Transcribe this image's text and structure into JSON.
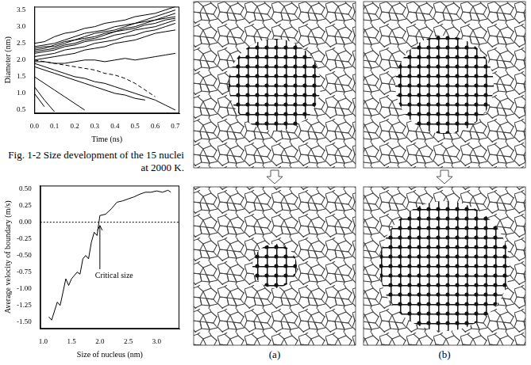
{
  "figure": {
    "caption": "Fig. 1-2 Size development of the 15 nuclei at 2000 K.",
    "panels": [
      {
        "label": "(a)"
      },
      {
        "label": "(b)"
      }
    ]
  },
  "chart_data": [
    {
      "type": "line",
      "x_label": "Time (ns)",
      "y_label": "Diameter (nm)",
      "grid": false,
      "x": [
        0,
        0.05,
        0.1,
        0.15,
        0.2,
        0.25,
        0.3,
        0.35,
        0.4,
        0.45,
        0.5,
        0.55,
        0.6,
        0.65,
        0.7
      ],
      "xlim": [
        0,
        0.72
      ],
      "xticks": [
        {
          "value": 0,
          "label": "0.0"
        },
        0.1,
        0.2,
        0.3,
        0.4,
        0.5,
        0.6,
        0.7
      ],
      "ylim": [
        0.4,
        3.6
      ],
      "yticks": [
        0.5,
        {
          "value": 1,
          "label": "1.0"
        },
        1.5,
        {
          "value": 2,
          "label": "2.0"
        },
        2.5,
        {
          "value": 3,
          "label": "3.0"
        },
        3.5
      ],
      "series": [
        {
          "color": "#000000",
          "values": [
            2.5,
            2.55,
            2.7,
            2.8,
            2.85,
            2.95,
            3.0,
            3.1,
            3.15,
            3.2,
            3.3,
            3.35,
            3.4,
            3.5,
            3.6
          ]
        },
        {
          "color": "#000000",
          "values": [
            2.4,
            2.45,
            2.5,
            2.6,
            2.7,
            2.8,
            2.85,
            2.9,
            3.0,
            3.05,
            3.1,
            3.2,
            3.3,
            3.4,
            3.5
          ]
        },
        {
          "color": "#000000",
          "values": [
            2.3,
            2.35,
            2.45,
            2.55,
            2.6,
            2.7,
            2.8,
            2.85,
            2.9,
            3.0,
            3.1,
            3.15,
            3.2,
            3.3,
            3.4
          ]
        },
        {
          "color": "#000000",
          "values": [
            2.35,
            2.4,
            2.4,
            2.5,
            2.6,
            2.65,
            2.7,
            2.8,
            2.85,
            2.95,
            3.0,
            3.1,
            3.2,
            3.25,
            3.3
          ]
        },
        {
          "color": "#000000",
          "values": [
            2.25,
            2.3,
            2.35,
            2.45,
            2.5,
            2.6,
            2.65,
            2.75,
            2.85,
            2.9,
            2.95,
            3.05,
            3.1,
            3.2,
            3.25
          ]
        },
        {
          "color": "#000000",
          "values": [
            2.2,
            2.25,
            2.3,
            2.4,
            2.45,
            2.55,
            2.6,
            2.65,
            2.75,
            2.8,
            2.9,
            2.95,
            3.0,
            3.1,
            3.2
          ]
        },
        {
          "color": "#000000",
          "values": [
            2.1,
            2.15,
            2.2,
            2.3,
            2.35,
            2.4,
            2.5,
            2.55,
            2.6,
            2.7,
            2.75,
            2.85,
            2.9,
            3.0,
            3.1
          ]
        },
        {
          "color": "#000000",
          "values": [
            2.0,
            2.05,
            2.1,
            2.15,
            2.2,
            2.3,
            2.35,
            2.4,
            2.5,
            2.55,
            2.6,
            2.7,
            2.8,
            2.85,
            2.9
          ]
        },
        {
          "color": "#000000",
          "values": [
            1.95,
            1.95,
            1.9,
            1.9,
            1.95,
            2.0,
            2.0,
            1.95,
            2.0,
            2.05,
            2.0,
            2.05,
            2.1,
            2.15,
            2.2
          ]
        },
        {
          "color": "#000000",
          "values": [
            1.9,
            1.8,
            1.7,
            1.6,
            1.5,
            1.45,
            1.35,
            1.3,
            1.2,
            1.1,
            1.0,
            0.9,
            0.8,
            0.65,
            0.5
          ]
        },
        {
          "color": "#000000",
          "line_style": "dashed",
          "values": [
            2.0,
            1.95,
            1.9,
            1.85,
            1.8,
            1.75,
            1.7,
            1.6,
            1.55,
            1.45,
            1.3,
            1.1,
            0.9,
            null,
            null
          ]
        },
        {
          "color": "#000000",
          "values": [
            1.5,
            1.3,
            1.1,
            0.9,
            0.7,
            0.5,
            null,
            null,
            null,
            null,
            null,
            null,
            null,
            null,
            null
          ]
        },
        {
          "color": "#000000",
          "values": [
            1.2,
            0.8,
            0.45,
            null,
            null,
            null,
            null,
            null,
            null,
            null,
            null,
            null,
            null,
            null,
            null
          ]
        },
        {
          "color": "#000000",
          "values": [
            1.0,
            0.6,
            null,
            null,
            null,
            null,
            null,
            null,
            null,
            null,
            null,
            null,
            null,
            null,
            null
          ]
        },
        {
          "color": "#000000",
          "values": [
            1.8,
            1.7,
            1.6,
            1.5,
            1.4,
            1.3,
            1.2,
            1.1,
            1.0,
            0.95,
            0.85,
            0.8,
            null,
            null,
            null
          ]
        }
      ]
    },
    {
      "type": "line",
      "x_label": "Size of nucleus (nm)",
      "y_label": "Average velocity of boundary (m/s)",
      "grid": false,
      "color": "#000000",
      "x": [
        1.1,
        1.15,
        1.25,
        1.3,
        1.35,
        1.4,
        1.45,
        1.5,
        1.6,
        1.65,
        1.7,
        1.75,
        1.8,
        1.85,
        1.9,
        1.95,
        2.0,
        2.1,
        2.2,
        2.3,
        2.4,
        2.5,
        2.6,
        2.7,
        2.8,
        2.9,
        3.0,
        3.1,
        3.2,
        3.25
      ],
      "values": [
        -1.42,
        -1.47,
        -1.2,
        -1.25,
        -1.05,
        -0.85,
        -0.95,
        -0.85,
        -0.75,
        -0.78,
        -0.55,
        -0.5,
        -0.55,
        -0.3,
        -0.15,
        -0.2,
        0.1,
        0.12,
        0.2,
        0.3,
        0.32,
        0.35,
        0.38,
        0.42,
        0.45,
        0.45,
        0.47,
        0.45,
        0.48,
        0.45
      ],
      "xlim": [
        0.95,
        3.4
      ],
      "xticks": [
        {
          "value": 1,
          "label": "1.0"
        },
        1.5,
        {
          "value": 2,
          "label": "2.0"
        },
        2.5,
        {
          "value": 3,
          "label": "3.0"
        }
      ],
      "ylim": [
        -1.6,
        0.55
      ],
      "yticks": [
        {
          "value": -1.5,
          "label": "-1.50"
        },
        -1.25,
        {
          "value": -1,
          "label": "-1.00"
        },
        -0.75,
        {
          "value": -0.5,
          "label": "-0.50"
        },
        -0.25,
        {
          "value": 0,
          "label": "0.00"
        },
        0.25,
        {
          "value": 0.5,
          "label": "0.50"
        }
      ],
      "reference_line": {
        "y": 0,
        "line_style": "dotted"
      },
      "annotations": [
        {
          "text": "Critical size",
          "x": 2.25,
          "y": -0.8,
          "arrow_to": {
            "x": 2.0,
            "y": -0.05
          }
        }
      ]
    }
  ]
}
